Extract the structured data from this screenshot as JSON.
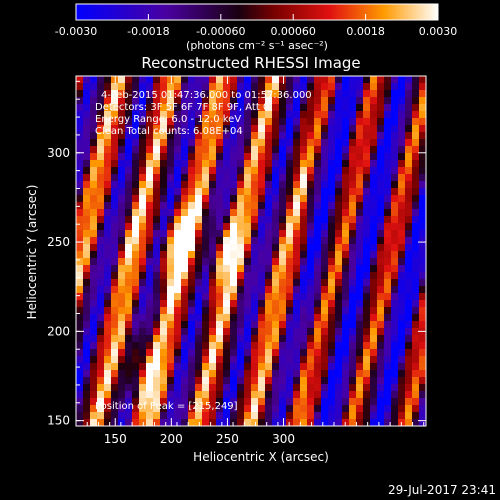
{
  "chart_data": {
    "type": "heatmap",
    "title": "Reconstructed RHESSI Image",
    "xlabel": "Heliocentric X (arcsec)",
    "ylabel": "Heliocentric Y (arcsec)",
    "xlim": [
      115,
      427
    ],
    "ylim": [
      147,
      343
    ],
    "xticks": [
      150,
      200,
      250,
      300
    ],
    "yticks": [
      150,
      200,
      250,
      300
    ],
    "colorbar": {
      "min": -0.003,
      "max": 0.003,
      "tick_values": [
        -0.003,
        -0.0018,
        -0.0006,
        0.0006,
        0.0018,
        0.003
      ],
      "tick_labels": [
        "-0.0030",
        "-0.0018",
        "-0.00060",
        "0.00060",
        "0.0018",
        "0.0030"
      ],
      "label": "(photons cm⁻² s⁻¹ asec⁻²)"
    },
    "annotations": [
      "4-Feb-2015 01:47:36.000 to 01:57:36.000",
      "Detectors: 3F 5F 6F 7F 8F 9F, Att 0",
      "Energy Range: 6.0 - 12.0 keV",
      "Clean     Total counts: 6.08E+04"
    ],
    "peak_label": "Position of Peak = [215,249]",
    "peak": [
      215,
      249
    ],
    "grid": false,
    "legend": "none"
  },
  "footer": {
    "date": "29-Jul-2017 23:41"
  }
}
